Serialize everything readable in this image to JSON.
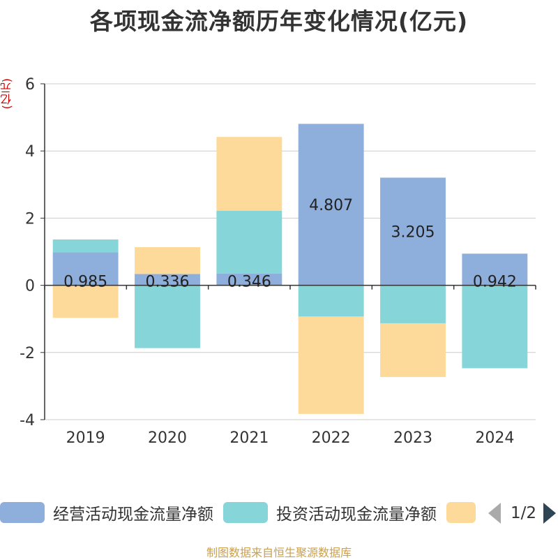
{
  "title": "各项现金流净额历年变化情况(亿元)",
  "source": "制图数据来自恒生聚源数据库",
  "pager": {
    "text": "1/2"
  },
  "colors": {
    "operating": "#8eaedb",
    "investing": "#86d5d8",
    "financing": "#fdd99a"
  },
  "chart_data": {
    "type": "bar",
    "stacked": true,
    "y_unit": "(亿元)",
    "categories": [
      "2019",
      "2020",
      "2021",
      "2022",
      "2023",
      "2024"
    ],
    "ylim": [
      -4,
      6
    ],
    "yticks": [
      -4,
      -2,
      0,
      2,
      4,
      6
    ],
    "series": [
      {
        "name": "经营活动现金流量净额",
        "color_key": "operating",
        "values": [
          0.985,
          0.336,
          0.346,
          4.807,
          3.205,
          0.942
        ],
        "labels": [
          "0.985",
          "0.336",
          "0.346",
          "4.807",
          "3.205",
          "0.942"
        ]
      },
      {
        "name": "投资活动现金流量净额",
        "color_key": "investing",
        "values": [
          0.38,
          -1.87,
          1.87,
          -0.93,
          -1.13,
          -2.47
        ]
      },
      {
        "name": "",
        "color_key": "financing",
        "values": [
          -0.97,
          0.8,
          2.2,
          -2.9,
          -1.6,
          0
        ]
      }
    ],
    "legend_visible": [
      "经营活动现金流量净额",
      "投资活动现金流量净额",
      ""
    ]
  }
}
